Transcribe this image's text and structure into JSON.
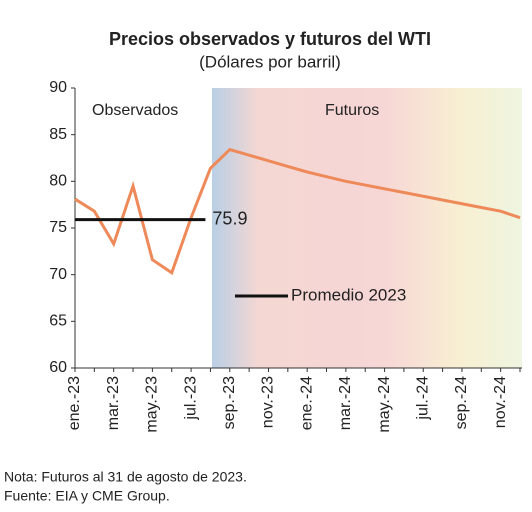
{
  "chart_data": {
    "type": "line",
    "title": "Precios observados y futuros del WTI",
    "subtitle": "(Dólares por barril)",
    "categories": [
      "ene.-23",
      null,
      "mar.-23",
      null,
      "may.-23",
      null,
      "jul.-23",
      null,
      "sep.-23",
      null,
      "nov.-23",
      null,
      "ene.-24",
      null,
      "mar.-24",
      null,
      "may.-24",
      null,
      "jul.-24",
      null,
      "sep.-24",
      null,
      "nov.-24",
      null
    ],
    "series": [
      {
        "name": "WTI",
        "color": "#ee8a5a",
        "values": [
          78.1,
          76.8,
          73.3,
          79.5,
          71.6,
          70.2,
          76.1,
          81.4,
          83.4,
          82.8,
          82.2,
          81.6,
          81.0,
          80.5,
          80.0,
          79.6,
          79.2,
          78.8,
          78.4,
          78.0,
          77.6,
          77.2,
          76.8,
          76.1
        ]
      }
    ],
    "average": {
      "name": "Promedio 2023",
      "value": 75.9,
      "color": "#111111"
    },
    "annotations": [
      "Observados",
      "Futuros"
    ],
    "ylim": [
      60,
      90
    ],
    "yticks": [
      60,
      65,
      70,
      75,
      80,
      85,
      90
    ],
    "notes": [
      "Nota: Futuros al 31 de agosto de 2023.",
      "Fuente: EIA y CME Group."
    ]
  }
}
